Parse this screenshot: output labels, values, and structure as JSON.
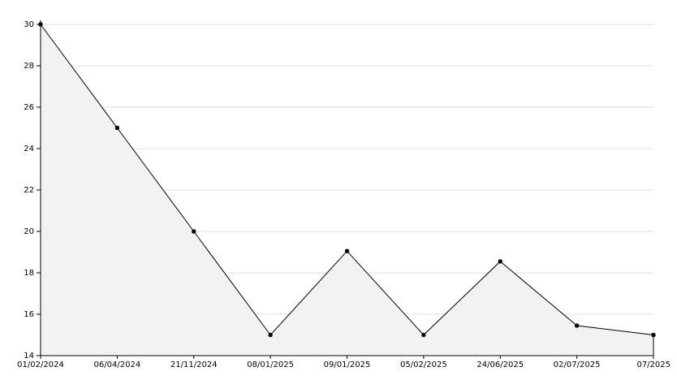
{
  "chart_data": {
    "type": "area",
    "categories": [
      "01/02/2024",
      "06/04/2024",
      "21/11/2024",
      "08/01/2025",
      "09/01/2025",
      "05/02/2025",
      "24/06/2025",
      "02/07/2025",
      "07/2025"
    ],
    "values": [
      30,
      25,
      20,
      15,
      19.05,
      15,
      18.55,
      15.45,
      15
    ],
    "color": "#000000",
    "fill": "#f2f2f2",
    "ylim": [
      14,
      30
    ],
    "yticks": [
      14,
      16,
      18,
      20,
      22,
      24,
      26,
      28,
      30
    ],
    "grid": true
  }
}
